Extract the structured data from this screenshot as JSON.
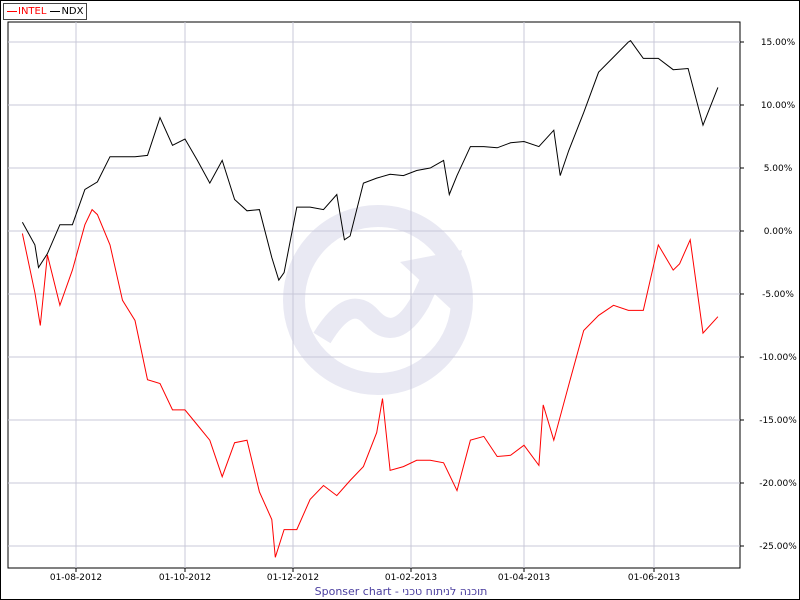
{
  "legend": [
    {
      "name": "INTEL",
      "color": "#ff0000"
    },
    {
      "name": "NDX",
      "color": "#000000"
    }
  ],
  "footer": "Sponser chart - תוכנה לניתוח טכני",
  "watermark_icon": "trend-arrow-circle-logo",
  "chart_data": {
    "type": "line",
    "title": "",
    "xlabel": "",
    "ylabel": "",
    "ylim": [
      -27,
      16.5
    ],
    "y_ticks": [
      15,
      10,
      5,
      0,
      -5,
      -10,
      -15,
      -20,
      -25
    ],
    "y_tick_labels": [
      "15.00%",
      "10.00%",
      "5.00%",
      "0.00%",
      "-5.00%",
      "-10.00%",
      "-15.00%",
      "-20.00%",
      "-25.00%"
    ],
    "x_range": [
      "2012-06-29",
      "2013-07-12"
    ],
    "x_ticks": [
      "2012-08-01",
      "2012-10-01",
      "2012-12-01",
      "2013-02-01",
      "2013-04-01",
      "2013-06-01"
    ],
    "x_tick_labels": [
      "01-08-2012",
      "01-10-2012",
      "01-12-2012",
      "01-02-2013",
      "01-04-2013",
      "01-06-2013"
    ],
    "grid": true,
    "legend_position": "top-left",
    "y_axis_side": "right",
    "series": [
      {
        "name": "INTEL",
        "color": "#ff0000",
        "points": [
          [
            "2012-07-02",
            -0.2
          ],
          [
            "2012-07-09",
            -4.9
          ],
          [
            "2012-07-12",
            -7.5
          ],
          [
            "2012-07-16",
            -1.9
          ],
          [
            "2012-07-23",
            -5.9
          ],
          [
            "2012-07-30",
            -3.1
          ],
          [
            "2012-08-06",
            0.5
          ],
          [
            "2012-08-10",
            1.7
          ],
          [
            "2012-08-13",
            1.3
          ],
          [
            "2012-08-20",
            -1.1
          ],
          [
            "2012-08-27",
            -5.5
          ],
          [
            "2012-09-03",
            -7.1
          ],
          [
            "2012-09-10",
            -11.8
          ],
          [
            "2012-09-17",
            -12.1
          ],
          [
            "2012-09-24",
            -14.2
          ],
          [
            "2012-10-01",
            -14.2
          ],
          [
            "2012-10-08",
            -15.4
          ],
          [
            "2012-10-15",
            -16.6
          ],
          [
            "2012-10-22",
            -19.5
          ],
          [
            "2012-10-29",
            -16.8
          ],
          [
            "2012-11-05",
            -16.6
          ],
          [
            "2012-11-12",
            -20.7
          ],
          [
            "2012-11-19",
            -22.9
          ],
          [
            "2012-11-21",
            -25.9
          ],
          [
            "2012-11-26",
            -23.7
          ],
          [
            "2012-12-03",
            -23.7
          ],
          [
            "2012-12-10",
            -21.3
          ],
          [
            "2012-12-17",
            -20.2
          ],
          [
            "2012-12-24",
            -21.0
          ],
          [
            "2012-12-31",
            -19.8
          ],
          [
            "2013-01-07",
            -18.7
          ],
          [
            "2013-01-14",
            -16.0
          ],
          [
            "2013-01-17",
            -13.3
          ],
          [
            "2013-01-21",
            -19.0
          ],
          [
            "2013-01-28",
            -18.7
          ],
          [
            "2013-02-04",
            -18.2
          ],
          [
            "2013-02-11",
            -18.2
          ],
          [
            "2013-02-18",
            -18.4
          ],
          [
            "2013-02-25",
            -20.6
          ],
          [
            "2013-03-04",
            -16.6
          ],
          [
            "2013-03-11",
            -16.3
          ],
          [
            "2013-03-18",
            -17.9
          ],
          [
            "2013-03-25",
            -17.8
          ],
          [
            "2013-04-01",
            -17.0
          ],
          [
            "2013-04-08",
            -18.6
          ],
          [
            "2013-04-10",
            -13.8
          ],
          [
            "2013-04-15",
            -16.6
          ],
          [
            "2013-04-22",
            -12.2
          ],
          [
            "2013-04-29",
            -7.9
          ],
          [
            "2013-05-06",
            -6.7
          ],
          [
            "2013-05-13",
            -5.9
          ],
          [
            "2013-05-20",
            -6.3
          ],
          [
            "2013-05-27",
            -6.3
          ],
          [
            "2013-06-03",
            -1.1
          ],
          [
            "2013-06-10",
            -3.1
          ],
          [
            "2013-06-13",
            -2.6
          ],
          [
            "2013-06-18",
            -0.7
          ],
          [
            "2013-06-24",
            -8.1
          ],
          [
            "2013-07-01",
            -6.8
          ]
        ]
      },
      {
        "name": "NDX",
        "color": "#000000",
        "points": [
          [
            "2012-07-02",
            0.7
          ],
          [
            "2012-07-09",
            -1.1
          ],
          [
            "2012-07-11",
            -2.9
          ],
          [
            "2012-07-16",
            -1.8
          ],
          [
            "2012-07-23",
            0.5
          ],
          [
            "2012-07-30",
            0.5
          ],
          [
            "2012-08-06",
            3.3
          ],
          [
            "2012-08-13",
            3.9
          ],
          [
            "2012-08-20",
            5.9
          ],
          [
            "2012-08-27",
            5.9
          ],
          [
            "2012-09-03",
            5.9
          ],
          [
            "2012-09-10",
            6.0
          ],
          [
            "2012-09-17",
            9.0
          ],
          [
            "2012-09-24",
            6.8
          ],
          [
            "2012-10-01",
            7.3
          ],
          [
            "2012-10-08",
            5.6
          ],
          [
            "2012-10-15",
            3.8
          ],
          [
            "2012-10-22",
            5.6
          ],
          [
            "2012-10-29",
            2.5
          ],
          [
            "2012-11-05",
            1.6
          ],
          [
            "2012-11-12",
            1.7
          ],
          [
            "2012-11-19",
            -2.1
          ],
          [
            "2012-11-23",
            -3.9
          ],
          [
            "2012-11-26",
            -3.3
          ],
          [
            "2012-12-03",
            1.9
          ],
          [
            "2012-12-10",
            1.9
          ],
          [
            "2012-12-17",
            1.7
          ],
          [
            "2012-12-24",
            2.9
          ],
          [
            "2012-12-28",
            -0.7
          ],
          [
            "2012-12-31",
            -0.4
          ],
          [
            "2013-01-07",
            3.8
          ],
          [
            "2013-01-14",
            4.2
          ],
          [
            "2013-01-21",
            4.5
          ],
          [
            "2013-01-28",
            4.4
          ],
          [
            "2013-02-04",
            4.8
          ],
          [
            "2013-02-11",
            5.0
          ],
          [
            "2013-02-18",
            5.6
          ],
          [
            "2013-02-21",
            2.9
          ],
          [
            "2013-02-25",
            4.4
          ],
          [
            "2013-03-04",
            6.7
          ],
          [
            "2013-03-11",
            6.7
          ],
          [
            "2013-03-18",
            6.6
          ],
          [
            "2013-03-25",
            7.0
          ],
          [
            "2013-04-01",
            7.1
          ],
          [
            "2013-04-08",
            6.7
          ],
          [
            "2013-04-15",
            8.0
          ],
          [
            "2013-04-18",
            4.4
          ],
          [
            "2013-04-22",
            6.4
          ],
          [
            "2013-04-29",
            9.4
          ],
          [
            "2013-05-06",
            12.6
          ],
          [
            "2013-05-13",
            13.8
          ],
          [
            "2013-05-20",
            15.0
          ],
          [
            "2013-05-21",
            15.1
          ],
          [
            "2013-05-27",
            13.7
          ],
          [
            "2013-06-03",
            13.7
          ],
          [
            "2013-06-10",
            12.8
          ],
          [
            "2013-06-17",
            12.9
          ],
          [
            "2013-06-24",
            8.4
          ],
          [
            "2013-07-01",
            11.4
          ]
        ]
      }
    ]
  }
}
